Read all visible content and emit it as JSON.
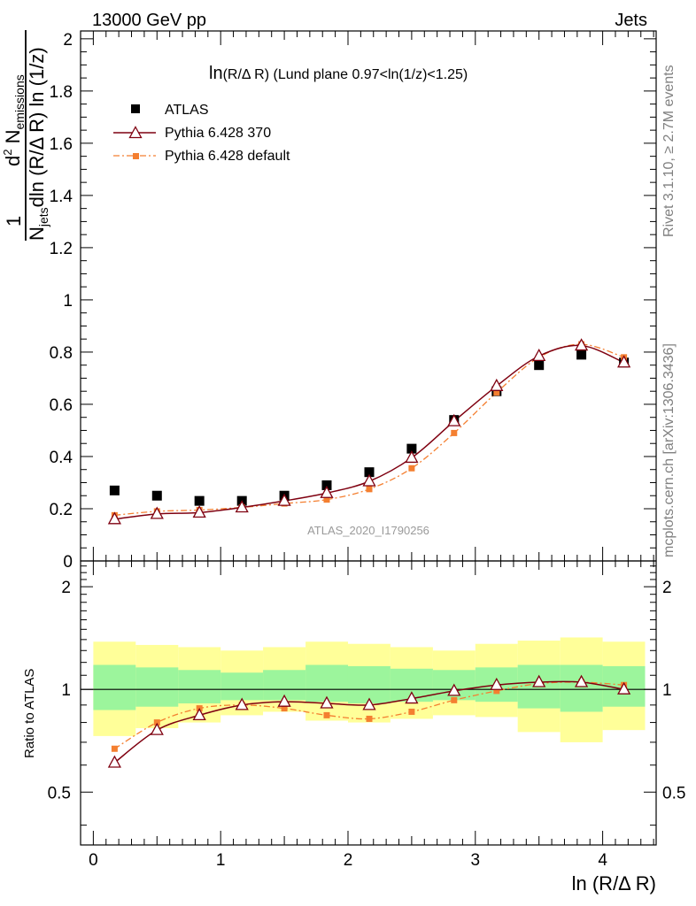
{
  "header": {
    "left": "13000 GeV pp",
    "right": "Jets"
  },
  "side_labels": {
    "rivet": "Rivet 3.1.10, ≥ 2.7M events",
    "mcplots": "mcplots.cern.ch [arXiv:1306.3436]"
  },
  "watermark": "ATLAS_2020_I1790256",
  "colors": {
    "atlas": "#000000",
    "pythia370": "#7f0010",
    "pythia_default": "#f47f30",
    "band_green": "#9cf59c",
    "band_yellow": "#ffff99"
  },
  "chart_data": [
    {
      "type": "scatter",
      "title": "ln(R/Δ R) (Lund plane 0.97<ln(1/z)<1.25)",
      "title_main": "ln",
      "title_sub": "(R/Δ R)",
      "title_rest": "(Lund plane 0.97<ln(1/z)<1.25)",
      "ylabel": {
        "one": "1",
        "d2": "d",
        "two": "2",
        "N": "N",
        "emissions": "emissions",
        "den_N": "N",
        "jets": "jets",
        "rest": "dln (R/Δ R) ln (1/z)"
      },
      "xlim": [
        -0.1,
        4.42
      ],
      "ylim": [
        0,
        2.03
      ],
      "yticks": [
        0,
        0.2,
        0.4,
        0.6,
        0.8,
        1,
        1.2,
        1.4,
        1.6,
        1.8,
        2
      ],
      "ytick_labels": [
        "0",
        "0.2",
        "0.4",
        "0.6",
        "0.8",
        "1",
        "1.2",
        "1.4",
        "1.6",
        "1.8",
        "2"
      ],
      "x": [
        0.167,
        0.5,
        0.833,
        1.167,
        1.5,
        1.833,
        2.167,
        2.5,
        2.833,
        3.167,
        3.5,
        3.833,
        4.167
      ],
      "series": [
        {
          "name": "ATLAS",
          "marker": "square",
          "values": [
            0.27,
            0.25,
            0.23,
            0.23,
            0.25,
            0.29,
            0.34,
            0.43,
            0.54,
            0.65,
            0.75,
            0.79,
            0.76
          ]
        },
        {
          "name": "Pythia 6.428 370",
          "marker": "triangle",
          "line": "solid",
          "values": [
            0.16,
            0.18,
            0.185,
            0.205,
            0.23,
            0.26,
            0.305,
            0.395,
            0.535,
            0.67,
            0.785,
            0.825,
            0.76
          ]
        },
        {
          "name": "Pythia 6.428 default",
          "marker": "small-square",
          "line": "dashdot",
          "values": [
            0.175,
            0.19,
            0.195,
            0.205,
            0.22,
            0.235,
            0.275,
            0.355,
            0.49,
            0.645,
            0.78,
            0.83,
            0.78
          ]
        }
      ]
    },
    {
      "type": "scatter",
      "ylabel": "Ratio to ATLAS",
      "xlabel": "ln (R/Δ R)",
      "xlim": [
        -0.1,
        4.42
      ],
      "ylim": [
        0.35,
        2.38
      ],
      "yscale": "log",
      "xticks": [
        0,
        1,
        2,
        3,
        4
      ],
      "xtick_labels": [
        "0",
        "1",
        "2",
        "3",
        "4"
      ],
      "yticks": [
        0.5,
        1,
        2
      ],
      "ytick_labels": [
        "0.5",
        "1",
        "2"
      ],
      "bin_edges": [
        0,
        0.333,
        0.667,
        1.0,
        1.333,
        1.667,
        2.0,
        2.333,
        2.667,
        3.0,
        3.333,
        3.667,
        4.0,
        4.333
      ],
      "band_yellow": [
        [
          0.73,
          1.38
        ],
        [
          0.77,
          1.35
        ],
        [
          0.8,
          1.33
        ],
        [
          0.84,
          1.3
        ],
        [
          0.86,
          1.33
        ],
        [
          0.81,
          1.38
        ],
        [
          0.8,
          1.36
        ],
        [
          0.82,
          1.33
        ],
        [
          0.84,
          1.3
        ],
        [
          0.83,
          1.36
        ],
        [
          0.75,
          1.39
        ],
        [
          0.7,
          1.42
        ],
        [
          0.76,
          1.38
        ]
      ],
      "band_green": [
        [
          0.87,
          1.18
        ],
        [
          0.89,
          1.16
        ],
        [
          0.91,
          1.14
        ],
        [
          0.93,
          1.12
        ],
        [
          0.93,
          1.14
        ],
        [
          0.92,
          1.18
        ],
        [
          0.91,
          1.17
        ],
        [
          0.92,
          1.15
        ],
        [
          0.93,
          1.14
        ],
        [
          0.92,
          1.16
        ],
        [
          0.88,
          1.18
        ],
        [
          0.86,
          1.18
        ],
        [
          0.89,
          1.17
        ]
      ],
      "series": [
        {
          "name": "Pythia 6.428 370",
          "marker": "triangle",
          "line": "solid",
          "values": [
            0.61,
            0.76,
            0.84,
            0.9,
            0.92,
            0.91,
            0.9,
            0.94,
            0.99,
            1.03,
            1.05,
            1.05,
            1.0
          ]
        },
        {
          "name": "Pythia 6.428 default",
          "marker": "small-square",
          "line": "dashdot",
          "values": [
            0.67,
            0.8,
            0.88,
            0.9,
            0.88,
            0.84,
            0.82,
            0.86,
            0.93,
            0.99,
            1.04,
            1.05,
            1.03
          ]
        }
      ]
    }
  ]
}
